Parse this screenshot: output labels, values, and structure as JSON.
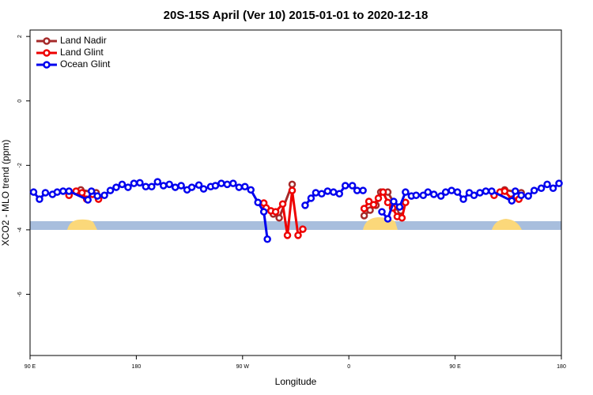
{
  "chart_data": {
    "type": "line",
    "title": "20S-15S April (Ver 10)   2015-01-01 to 2020-12-18",
    "x_label": "Longitude",
    "y_label": "XCO2 - MLO trend (ppm)",
    "xlim": [
      90,
      540
    ],
    "ylim": [
      -7.9,
      2.2
    ],
    "xticks": [
      {
        "value": 90,
        "label": "90 E"
      },
      180,
      {
        "value": 270,
        "label": "90 W"
      },
      {
        "value": 360,
        "label": "0"
      },
      {
        "value": 450,
        "label": "90 E"
      },
      {
        "value": 540,
        "label": "180"
      }
    ],
    "yticks": [
      2,
      0,
      -2,
      -4,
      -6
    ],
    "legend": "upper left",
    "series": [
      {
        "name": "Land Nadir",
        "color": "#a52a2a",
        "x": [
          133,
          146,
          null,
          296,
          301,
          312,
          null,
          373,
          378,
          383,
          387,
          393,
          400,
          404,
          null,
          492,
          506
        ],
        "values": [
          -2.76,
          -2.85,
          null,
          -3.51,
          -3.63,
          -2.59,
          null,
          -3.56,
          -3.39,
          -3.24,
          -2.83,
          -2.83,
          -3.29,
          -3.41,
          null,
          -2.76,
          -2.85
        ]
      },
      {
        "name": "Land Glint",
        "color": "#ee0000",
        "x": [
          123,
          129,
          134,
          138,
          143,
          148,
          null,
          288,
          290,
          294,
          298,
          304,
          308,
          312,
          317,
          321,
          null,
          373,
          377,
          381,
          385,
          389,
          393,
          397,
          401,
          405,
          408,
          null,
          483,
          488,
          492,
          498,
          504
        ],
        "values": [
          -2.93,
          -2.8,
          -2.85,
          -3.05,
          -2.9,
          -3.05,
          null,
          -3.17,
          -3.32,
          -3.41,
          -3.44,
          -3.2,
          -4.17,
          -2.78,
          -4.17,
          -3.98,
          null,
          -3.34,
          -3.12,
          -3.22,
          -3.02,
          -2.83,
          -3.15,
          -3.32,
          -3.59,
          -3.63,
          -3.15,
          null,
          -2.93,
          -2.83,
          -2.8,
          -3.05,
          -3.05
        ]
      },
      {
        "name": "Ocean Glint",
        "color": "#0000ee",
        "x": [
          93,
          98,
          103,
          109,
          113,
          118,
          123,
          139,
          142,
          147,
          153,
          158,
          163,
          168,
          173,
          178,
          183,
          188,
          193,
          198,
          203,
          208,
          213,
          218,
          223,
          227,
          233,
          237,
          243,
          247,
          252,
          257,
          262,
          267,
          272,
          277,
          283,
          288,
          291,
          null,
          323,
          328,
          332,
          337,
          342,
          347,
          352,
          357,
          363,
          367,
          372,
          null,
          388,
          393,
          398,
          403,
          408,
          413,
          417,
          423,
          427,
          432,
          438,
          442,
          447,
          452,
          457,
          462,
          466,
          471,
          476,
          481,
          498,
          501,
          506,
          512,
          517,
          523,
          528,
          533,
          538
        ],
        "values": [
          -2.83,
          -3.05,
          -2.85,
          -2.9,
          -2.83,
          -2.8,
          -2.8,
          -3.07,
          -2.8,
          -2.95,
          -2.93,
          -2.78,
          -2.68,
          -2.59,
          -2.68,
          -2.56,
          -2.54,
          -2.66,
          -2.66,
          -2.51,
          -2.63,
          -2.59,
          -2.68,
          -2.63,
          -2.76,
          -2.68,
          -2.61,
          -2.73,
          -2.66,
          -2.63,
          -2.56,
          -2.59,
          -2.56,
          -2.68,
          -2.66,
          -2.76,
          -3.15,
          -3.44,
          -4.29,
          null,
          -3.24,
          -3.02,
          -2.85,
          -2.88,
          -2.8,
          -2.83,
          -2.88,
          -2.63,
          -2.63,
          -2.78,
          -2.78,
          null,
          -3.44,
          -3.66,
          -3.12,
          -3.29,
          -2.83,
          -2.95,
          -2.93,
          -2.93,
          -2.83,
          -2.9,
          -2.95,
          -2.83,
          -2.78,
          -2.83,
          -3.05,
          -2.85,
          -2.93,
          -2.85,
          -2.8,
          -2.8,
          -3.1,
          -2.8,
          -2.93,
          -2.95,
          -2.78,
          -2.71,
          -2.59,
          -2.71,
          -2.56
        ]
      }
    ]
  }
}
